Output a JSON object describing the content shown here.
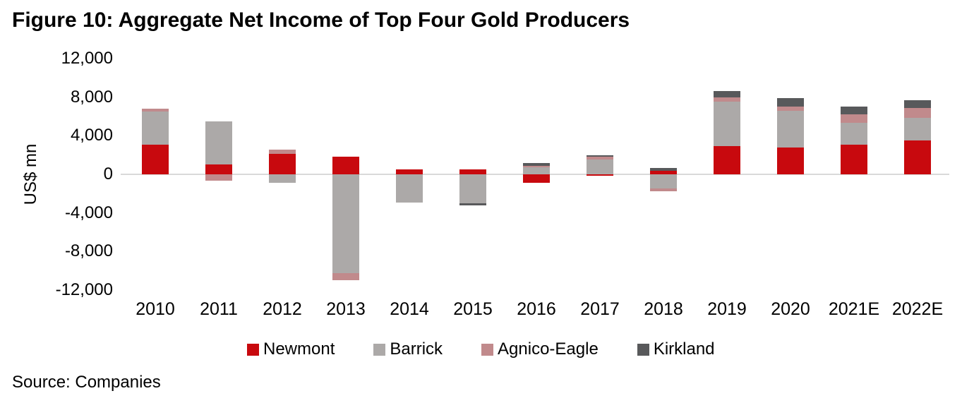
{
  "title": "Figure 10: Aggregate Net Income of Top Four Gold Producers",
  "source": "Source: Companies",
  "colors": {
    "newmont": "#C8090E",
    "barrick": "#ACA9A8",
    "agnico_eagle": "#C18A8C",
    "kirkland": "#58595B",
    "axis_line": "#D9D9D9",
    "text": "#000000"
  },
  "chart_data": {
    "type": "bar",
    "stacked": true,
    "title": "Figure 10: Aggregate Net Income of Top Four Gold Producers",
    "xlabel": "",
    "ylabel": "US$ mn",
    "ylim": [
      -12000,
      12000
    ],
    "ytick_interval": 4000,
    "yticks": [
      {
        "value": 12000,
        "label": "12,000"
      },
      {
        "value": 8000,
        "label": "8,000"
      },
      {
        "value": 4000,
        "label": "4,000"
      },
      {
        "value": 0,
        "label": "0"
      },
      {
        "value": -4000,
        "label": "-4,000"
      },
      {
        "value": -8000,
        "label": "-8,000"
      },
      {
        "value": -12000,
        "label": "-12,000"
      }
    ],
    "grid": false,
    "legend_position": "bottom",
    "categories": [
      "2010",
      "2011",
      "2012",
      "2013",
      "2014",
      "2015",
      "2016",
      "2017",
      "2018",
      "2019",
      "2020",
      "2021E",
      "2022E"
    ],
    "series": [
      {
        "name": "Newmont",
        "color": "#C8090E",
        "values": [
          3100,
          1000,
          2100,
          1800,
          500,
          500,
          -850,
          -150,
          350,
          2900,
          2800,
          3100,
          3500
        ]
      },
      {
        "name": "Barrick",
        "color": "#ACA9A8",
        "values": [
          3400,
          4500,
          -850,
          -10250,
          -2950,
          -3000,
          750,
          1550,
          -1450,
          4650,
          3750,
          2250,
          2350
        ]
      },
      {
        "name": "Agnico-Eagle",
        "color": "#C18A8C",
        "values": [
          300,
          -650,
          450,
          -700,
          0,
          0,
          150,
          250,
          -300,
          450,
          450,
          850,
          1000
        ]
      },
      {
        "name": "Kirkland",
        "color": "#58595B",
        "values": [
          0,
          0,
          0,
          0,
          0,
          -250,
          250,
          200,
          300,
          600,
          900,
          800,
          850
        ]
      }
    ]
  }
}
